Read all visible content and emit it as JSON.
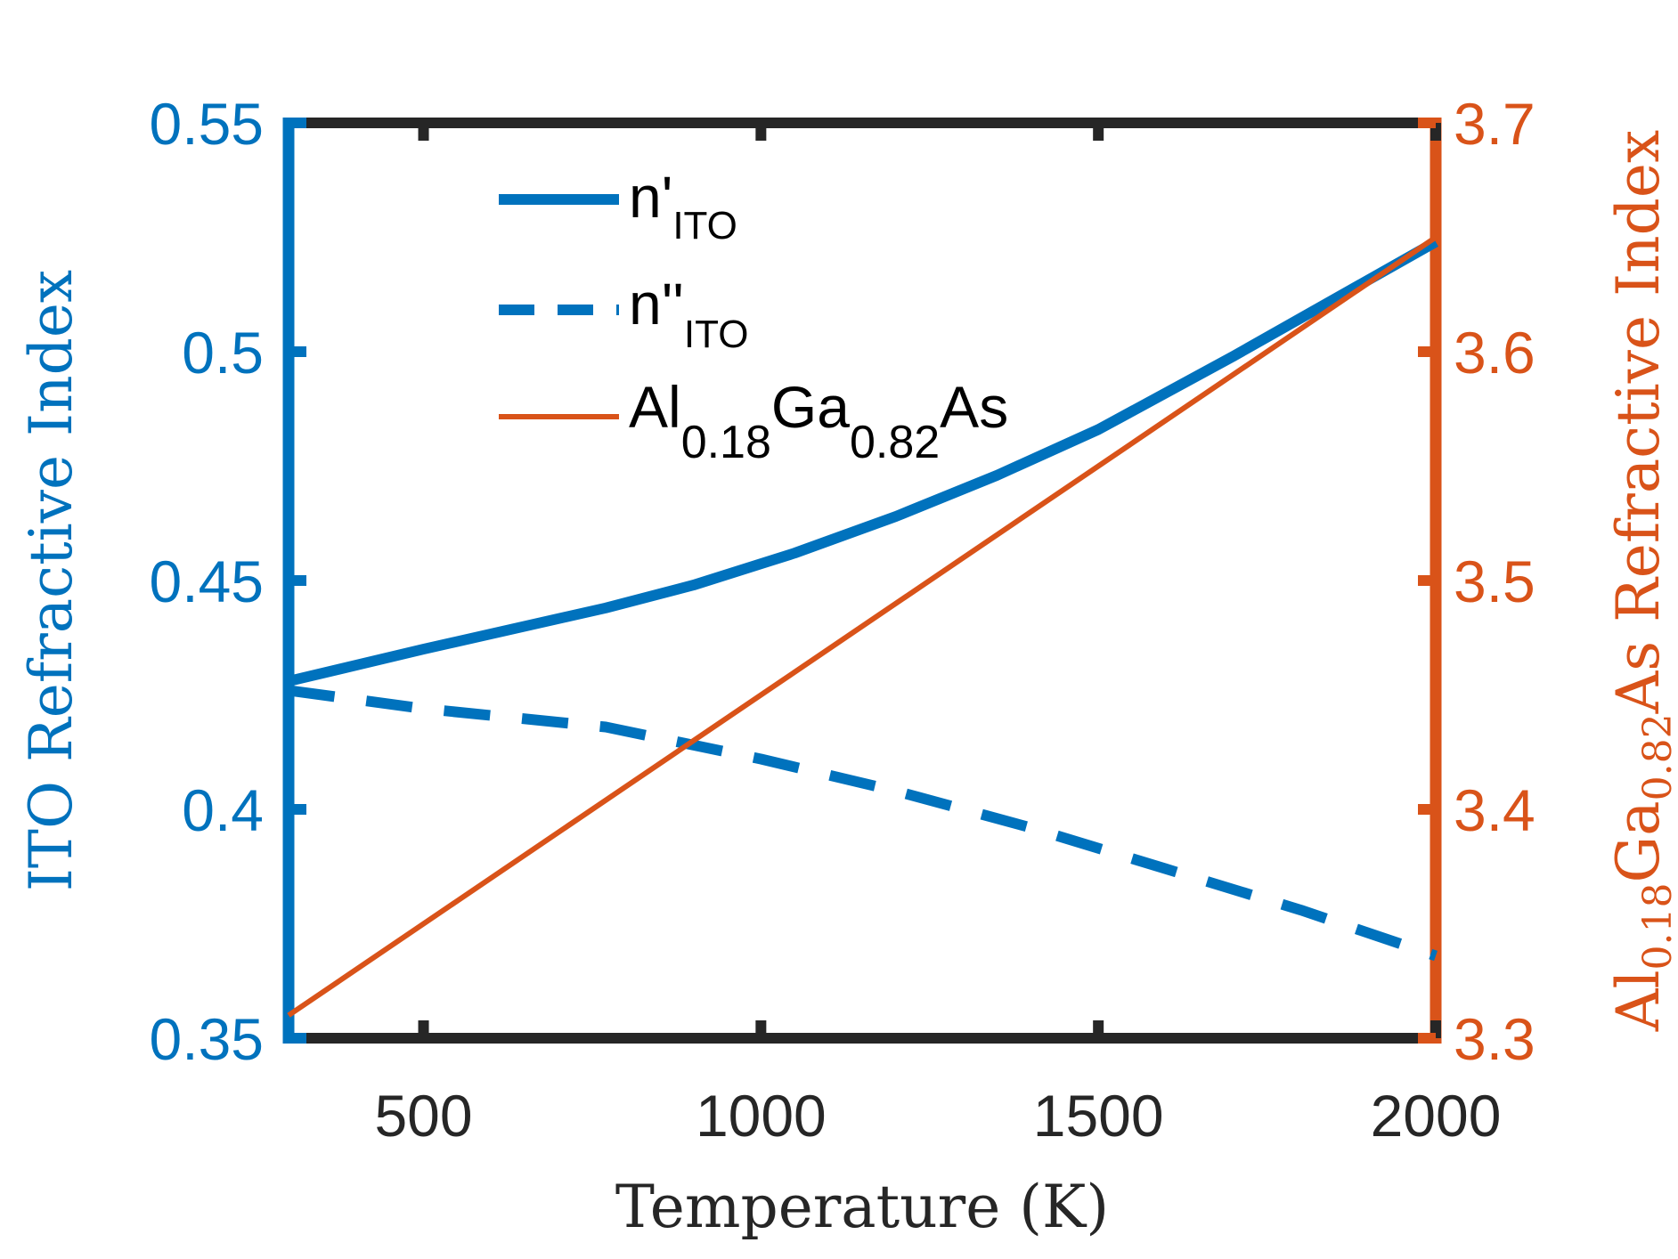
{
  "chart_data": {
    "type": "line",
    "xlabel": "Temperature (K)",
    "xlim": [
      300,
      2000
    ],
    "xticks": [
      500,
      1000,
      1500,
      2000
    ],
    "y_left": {
      "label": "ITO Refractive Index",
      "lim": [
        0.35,
        0.55
      ],
      "ticks": [
        "0.35",
        "0.4",
        "0.45",
        "0.5",
        "0.55"
      ],
      "color": "#0072BD"
    },
    "y_right": {
      "label_main": "Al",
      "label_sub1": "0.18",
      "label_mid": "Ga",
      "label_sub2": "0.82",
      "label_end": "As Refractive Index",
      "lim": [
        3.3,
        3.7
      ],
      "ticks": [
        "3.3",
        "3.4",
        "3.5",
        "3.6",
        "3.7"
      ],
      "color": "#D95319"
    },
    "series": [
      {
        "name_main": "n'",
        "name_sub": "ITO",
        "axis": "left",
        "style": "solid",
        "color": "#0072BD",
        "x": [
          300,
          500,
          770,
          900,
          1050,
          1200,
          1350,
          1500,
          1700,
          2000
        ],
        "y": [
          0.428,
          0.435,
          0.444,
          0.449,
          0.456,
          0.464,
          0.473,
          0.483,
          0.499,
          0.524
        ]
      },
      {
        "name_main": "n''",
        "name_sub": "ITO",
        "axis": "left",
        "style": "dashed",
        "color": "#0072BD",
        "x": [
          300,
          500,
          770,
          1000,
          1200,
          1400,
          1600,
          1800,
          2000
        ],
        "y": [
          0.426,
          0.422,
          0.418,
          0.411,
          0.404,
          0.396,
          0.387,
          0.378,
          0.368
        ]
      },
      {
        "name_main": "Al",
        "name_sub1": "0.18",
        "name_mid": "Ga",
        "name_sub2": "0.82",
        "name_end": "As",
        "axis": "right",
        "style": "solid-thin",
        "color": "#D95319",
        "x": [
          300,
          2000
        ],
        "y": [
          3.31,
          3.65
        ]
      }
    ],
    "legend": "top-left",
    "grid": false
  }
}
